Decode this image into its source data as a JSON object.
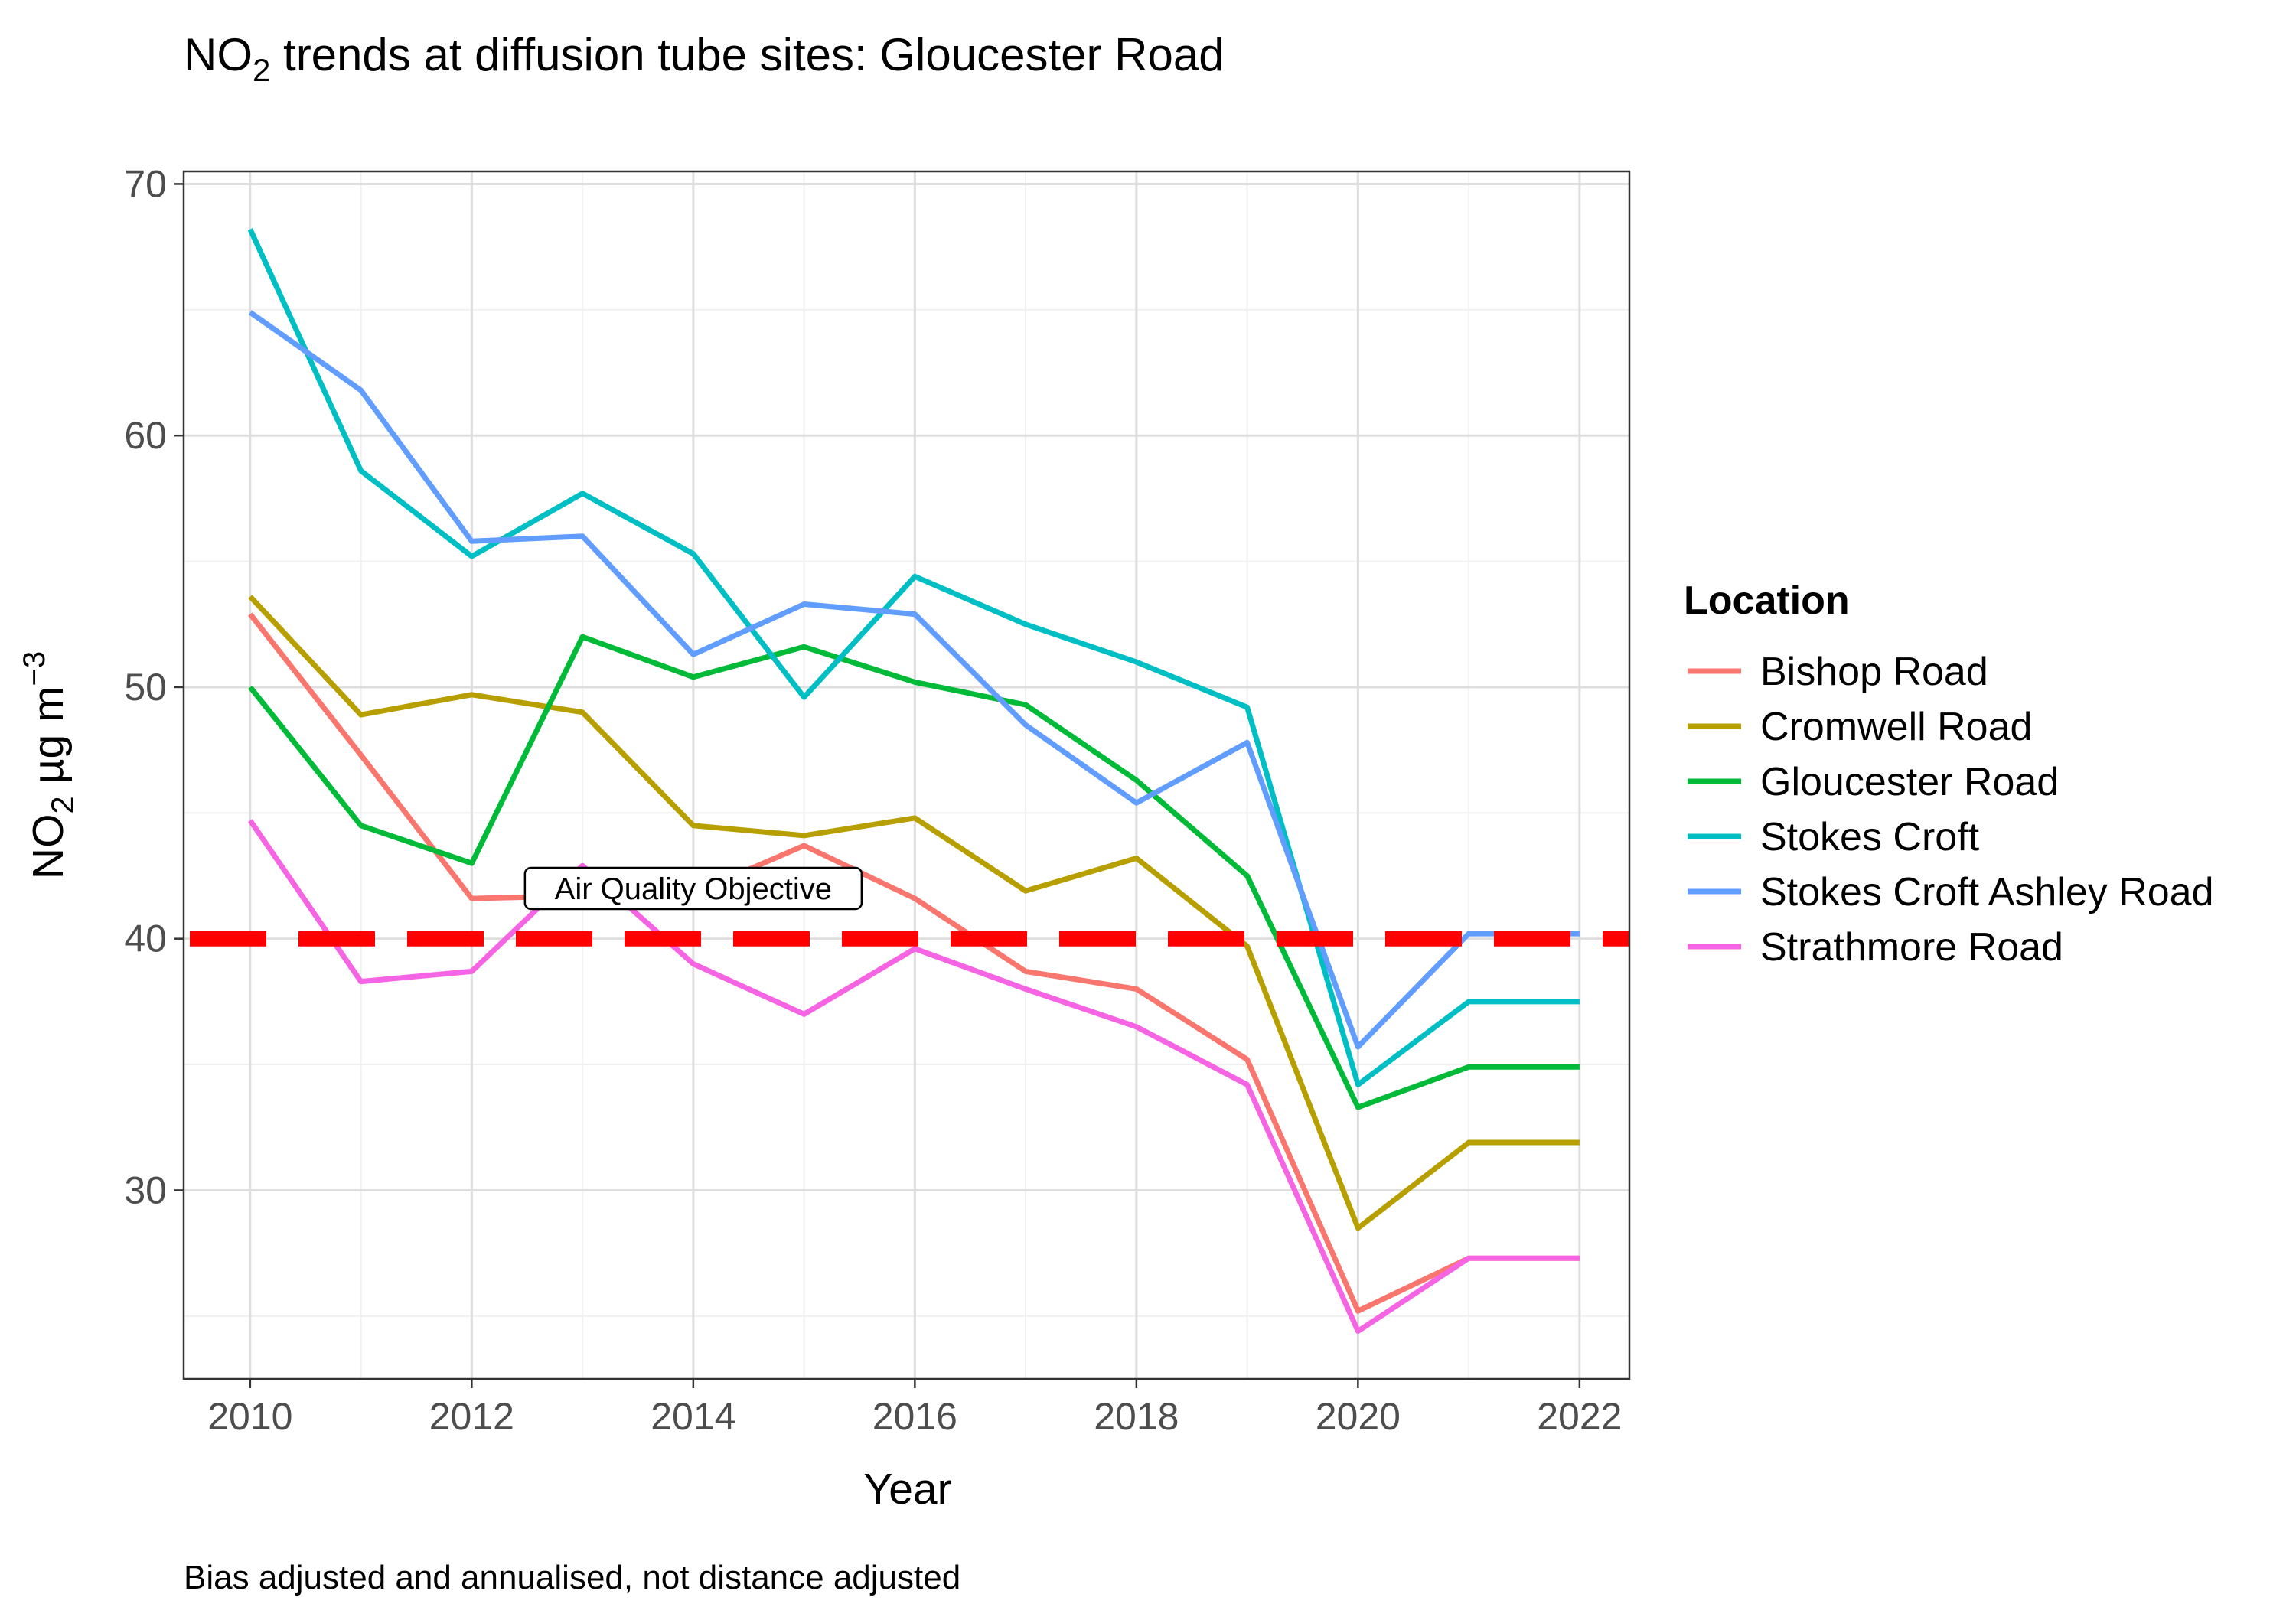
{
  "chart_data": {
    "type": "line",
    "title_prefix": "NO",
    "title_subscript": "2",
    "title_suffix": " trends at diffusion tube sites: Gloucester Road",
    "caption": "Bias adjusted and annualised, not distance adjusted",
    "xlabel": "Year",
    "ylabel_prefix": "NO",
    "ylabel_subscript": "2",
    "ylabel_unit": " µg m",
    "ylabel_superscript": "−3",
    "xlim": [
      2009.4,
      2022.45
    ],
    "ylim": [
      22.5,
      70.5
    ],
    "x_ticks": [
      2010,
      2012,
      2014,
      2016,
      2018,
      2020,
      2022
    ],
    "y_ticks": [
      30,
      40,
      50,
      60,
      70
    ],
    "grid": true,
    "legend_title": "Location",
    "legend_position": "right",
    "reference_line": {
      "value": 40,
      "label": "Air Quality Objective",
      "label_x": 2014,
      "color": "#ff0000",
      "style": "dashed"
    },
    "x": [
      2010,
      2011,
      2012,
      2013,
      2014,
      2015,
      2016,
      2017,
      2018,
      2019,
      2020,
      2021,
      2022
    ],
    "series": [
      {
        "name": "Bishop Road",
        "color": "#F8766D",
        "values": [
          52.9,
          47.3,
          41.6,
          41.7,
          41.8,
          43.7,
          41.6,
          38.7,
          38.0,
          35.2,
          25.2,
          27.3,
          27.3
        ]
      },
      {
        "name": "Cromwell Road",
        "color": "#B79F00",
        "values": [
          53.6,
          48.9,
          49.7,
          49.0,
          44.5,
          44.1,
          44.8,
          41.9,
          43.2,
          39.7,
          28.5,
          31.9,
          31.9
        ]
      },
      {
        "name": "Gloucester Road",
        "color": "#00BA38",
        "values": [
          50.0,
          44.5,
          43.0,
          52.0,
          50.4,
          51.6,
          50.2,
          49.3,
          46.3,
          42.5,
          33.3,
          34.9,
          34.9
        ]
      },
      {
        "name": "Stokes Croft",
        "color": "#00BFC4",
        "values": [
          68.2,
          58.6,
          55.2,
          57.7,
          55.3,
          49.6,
          54.4,
          52.5,
          51.0,
          49.2,
          34.2,
          37.5,
          37.5
        ]
      },
      {
        "name": "Stokes Croft Ashley Road",
        "color": "#619CFF",
        "values": [
          64.9,
          61.8,
          55.8,
          56.0,
          51.3,
          53.3,
          52.9,
          48.5,
          45.4,
          47.8,
          35.7,
          40.2,
          40.2
        ]
      },
      {
        "name": "Strathmore Road",
        "color": "#F564E3",
        "values": [
          44.7,
          38.3,
          38.7,
          42.9,
          39.0,
          37.0,
          39.6,
          38.0,
          36.5,
          34.2,
          24.4,
          27.3,
          27.3
        ]
      }
    ]
  }
}
